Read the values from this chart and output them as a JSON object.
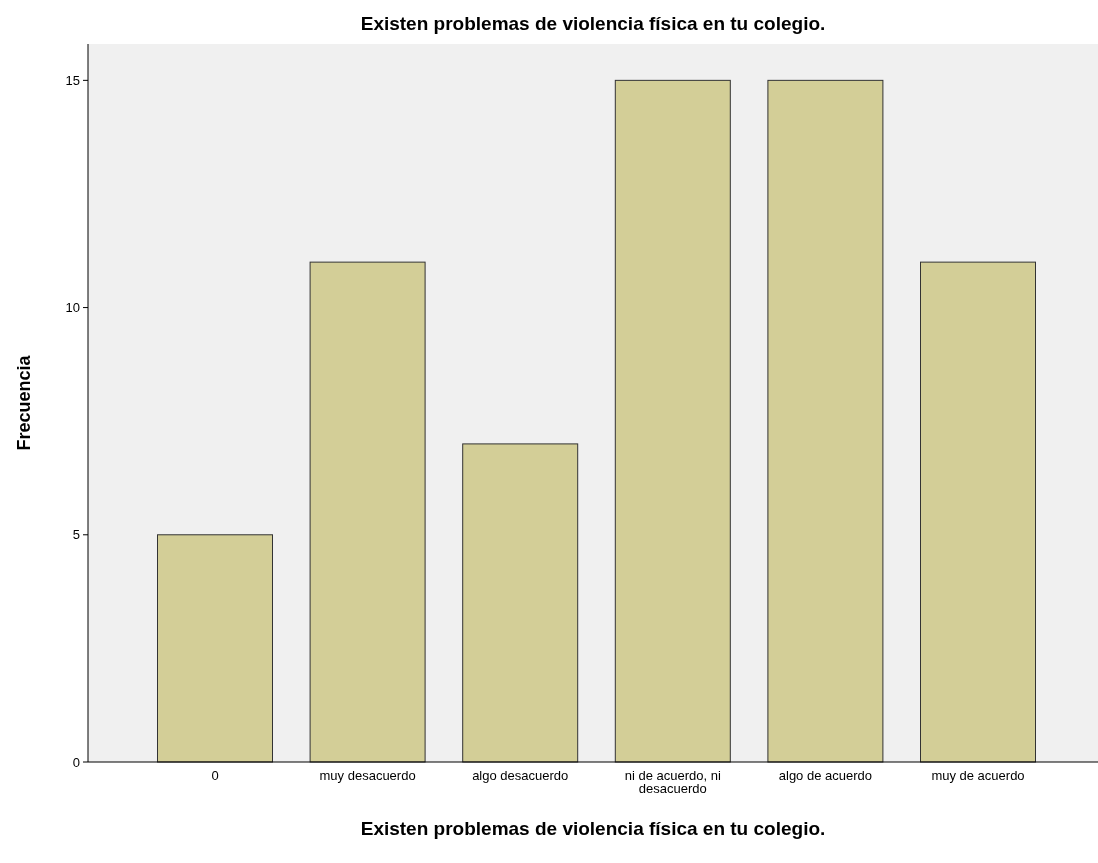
{
  "chart_data": {
    "type": "bar",
    "title": "Existen problemas de violencia física en tu colegio.",
    "xlabel": "Existen problemas de violencia física en tu colegio.",
    "ylabel": "Frecuencia",
    "categories": [
      "0",
      "muy desacuerdo",
      "algo desacuerdo",
      "ni de acuerdo, ni desacuerdo",
      "algo de acuerdo",
      "muy de acuerdo"
    ],
    "values": [
      5,
      11,
      7,
      15,
      15,
      11
    ],
    "color": "#d3ce97",
    "ylim": [
      0,
      15.8
    ],
    "yticks": [
      0,
      5,
      10,
      15
    ],
    "grid": false
  }
}
